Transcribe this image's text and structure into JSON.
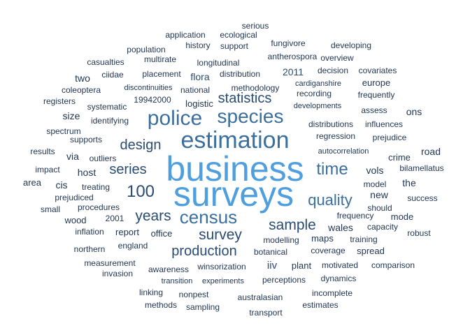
{
  "colors": {
    "background": "#ffffff",
    "scale": [
      "#1f3550",
      "#2a4c72",
      "#3b6f9e",
      "#4f9fde"
    ]
  },
  "words": [
    {
      "text": "business",
      "freq": 1.0
    },
    {
      "text": "surveys",
      "freq": 1.0
    },
    {
      "text": "estimation",
      "freq": 0.7
    },
    {
      "text": "police",
      "freq": 0.62
    },
    {
      "text": "species",
      "freq": 0.55
    },
    {
      "text": "census",
      "freq": 0.48
    },
    {
      "text": "time",
      "freq": 0.45
    },
    {
      "text": "quality",
      "freq": 0.4
    },
    {
      "text": "sample",
      "freq": 0.38
    },
    {
      "text": "years",
      "freq": 0.38
    },
    {
      "text": "survey",
      "freq": 0.37
    },
    {
      "text": "100",
      "freq": 0.36
    },
    {
      "text": "design",
      "freq": 0.34
    },
    {
      "text": "statistics",
      "freq": 0.32
    },
    {
      "text": "series",
      "freq": 0.32
    },
    {
      "text": "production",
      "freq": 0.32
    },
    {
      "text": "iiv",
      "freq": 0.22
    },
    {
      "text": "2011",
      "freq": 0.2
    },
    {
      "text": "flora",
      "freq": 0.2
    },
    {
      "text": "two",
      "freq": 0.19
    },
    {
      "text": "size",
      "freq": 0.19
    },
    {
      "text": "via",
      "freq": 0.19
    },
    {
      "text": "cis",
      "freq": 0.18
    },
    {
      "text": "host",
      "freq": 0.18
    },
    {
      "text": "ons",
      "freq": 0.18
    },
    {
      "text": "vols",
      "freq": 0.18
    },
    {
      "text": "the",
      "freq": 0.18
    },
    {
      "text": "new",
      "freq": 0.18
    },
    {
      "text": "road",
      "freq": 0.18
    },
    {
      "text": "wales",
      "freq": 0.18
    },
    {
      "text": "area",
      "freq": 0.17
    },
    {
      "text": "maps",
      "freq": 0.17
    },
    {
      "text": "logistic",
      "freq": 0.16
    },
    {
      "text": "europe",
      "freq": 0.16
    },
    {
      "text": "crime",
      "freq": 0.16
    },
    {
      "text": "wood",
      "freq": 0.15
    },
    {
      "text": "mode",
      "freq": 0.15
    },
    {
      "text": "spread",
      "freq": 0.15
    },
    {
      "text": "plant",
      "freq": 0.15
    },
    {
      "text": "report",
      "freq": 0.15
    },
    {
      "text": "office",
      "freq": 0.15
    },
    {
      "text": "2001",
      "freq": 0.14
    },
    {
      "text": "should",
      "freq": 0.14
    },
    {
      "text": "model",
      "freq": 0.14
    },
    {
      "text": "assess",
      "freq": 0.14
    },
    {
      "text": "robust",
      "freq": 0.14
    },
    {
      "text": "small",
      "freq": 0.14
    },
    {
      "text": "impact",
      "freq": 0.14
    },
    {
      "text": "outliers",
      "freq": 0.14
    },
    {
      "text": "results",
      "freq": 0.13
    },
    {
      "text": "supports",
      "freq": 0.13
    },
    {
      "text": "spectrum",
      "freq": 0.13
    },
    {
      "text": "identifying",
      "freq": 0.13
    },
    {
      "text": "systematic",
      "freq": 0.13
    },
    {
      "text": "registers",
      "freq": 0.13
    },
    {
      "text": "coleoptera",
      "freq": 0.13
    },
    {
      "text": "ciidae",
      "freq": 0.13
    },
    {
      "text": "casualties",
      "freq": 0.13
    },
    {
      "text": "population",
      "freq": 0.13
    },
    {
      "text": "multirate",
      "freq": 0.13
    },
    {
      "text": "application",
      "freq": 0.13
    },
    {
      "text": "ecological",
      "freq": 0.13
    },
    {
      "text": "serious",
      "freq": 0.13
    },
    {
      "text": "history",
      "freq": 0.13
    },
    {
      "text": "support",
      "freq": 0.13
    },
    {
      "text": "fungivore",
      "freq": 0.13
    },
    {
      "text": "developing",
      "freq": 0.13
    },
    {
      "text": "antherospora",
      "freq": 0.13
    },
    {
      "text": "overview",
      "freq": 0.13
    },
    {
      "text": "longitudinal",
      "freq": 0.13
    },
    {
      "text": "placement",
      "freq": 0.13
    },
    {
      "text": "distribution",
      "freq": 0.13
    },
    {
      "text": "decision",
      "freq": 0.13
    },
    {
      "text": "covariates",
      "freq": 0.13
    },
    {
      "text": "discontinuities",
      "freq": 0.12
    },
    {
      "text": "national",
      "freq": 0.13
    },
    {
      "text": "methodology",
      "freq": 0.13
    },
    {
      "text": "cardiganshire",
      "freq": 0.12
    },
    {
      "text": "recording",
      "freq": 0.13
    },
    {
      "text": "frequently",
      "freq": 0.13
    },
    {
      "text": "19942000",
      "freq": 0.13
    },
    {
      "text": "developments",
      "freq": 0.12
    },
    {
      "text": "distributions",
      "freq": 0.13
    },
    {
      "text": "influences",
      "freq": 0.13
    },
    {
      "text": "regression",
      "freq": 0.13
    },
    {
      "text": "prejudice",
      "freq": 0.13
    },
    {
      "text": "autocorrelation",
      "freq": 0.12
    },
    {
      "text": "bilamellatus",
      "freq": 0.13
    },
    {
      "text": "treating",
      "freq": 0.13
    },
    {
      "text": "prejudiced",
      "freq": 0.13
    },
    {
      "text": "procedures",
      "freq": 0.13
    },
    {
      "text": "inflation",
      "freq": 0.13
    },
    {
      "text": "success",
      "freq": 0.13
    },
    {
      "text": "frequency",
      "freq": 0.13
    },
    {
      "text": "capacity",
      "freq": 0.13
    },
    {
      "text": "training",
      "freq": 0.13
    },
    {
      "text": "modelling",
      "freq": 0.13
    },
    {
      "text": "northern",
      "freq": 0.13
    },
    {
      "text": "england",
      "freq": 0.13
    },
    {
      "text": "botanical",
      "freq": 0.13
    },
    {
      "text": "coverage",
      "freq": 0.13
    },
    {
      "text": "measurement",
      "freq": 0.13
    },
    {
      "text": "invasion",
      "freq": 0.13
    },
    {
      "text": "awareness",
      "freq": 0.13
    },
    {
      "text": "winsorization",
      "freq": 0.13
    },
    {
      "text": "motivated",
      "freq": 0.13
    },
    {
      "text": "comparison",
      "freq": 0.13
    },
    {
      "text": "transition",
      "freq": 0.12
    },
    {
      "text": "experiments",
      "freq": 0.12
    },
    {
      "text": "perceptions",
      "freq": 0.13
    },
    {
      "text": "dynamics",
      "freq": 0.13
    },
    {
      "text": "linking",
      "freq": 0.13
    },
    {
      "text": "nonpest",
      "freq": 0.13
    },
    {
      "text": "australasian",
      "freq": 0.13
    },
    {
      "text": "incomplete",
      "freq": 0.13
    },
    {
      "text": "methods",
      "freq": 0.13
    },
    {
      "text": "sampling",
      "freq": 0.13
    },
    {
      "text": "estimates",
      "freq": 0.13
    },
    {
      "text": "transport",
      "freq": 0.13
    }
  ]
}
